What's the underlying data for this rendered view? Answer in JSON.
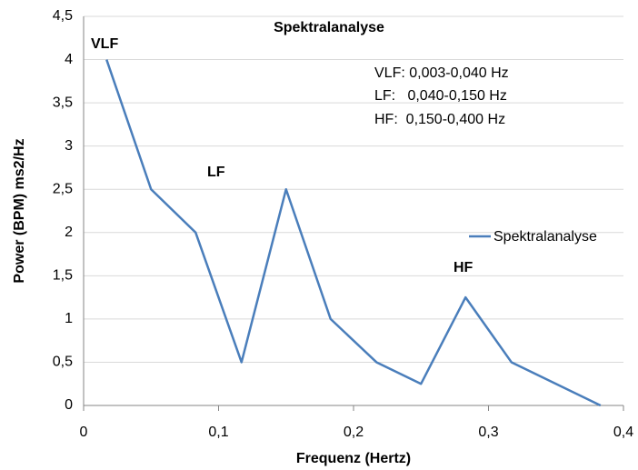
{
  "chart_data": {
    "type": "line",
    "title": "Spektralanalyse",
    "x_label": "Frequenz (Hertz)",
    "y_label": "Power (BPM) ms2/Hz",
    "x": [
      0.017,
      0.05,
      0.083,
      0.117,
      0.15,
      0.183,
      0.217,
      0.25,
      0.283,
      0.317,
      0.383
    ],
    "series": [
      {
        "name": "Spektralanalyse",
        "color": "#4a7ebb",
        "values": [
          4,
          2.5,
          2,
          0.5,
          2.5,
          1,
          0.5,
          0.25,
          1.25,
          0.5,
          0
        ]
      }
    ],
    "xlim": [
      0,
      0.4
    ],
    "xticks": [
      0,
      {
        "value": 0.1,
        "label": "0,1"
      },
      {
        "value": 0.2,
        "label": "0,2"
      },
      {
        "value": 0.3,
        "label": "0,3"
      },
      {
        "value": 0.4,
        "label": "0,4"
      }
    ],
    "ylim": [
      0,
      4.5
    ],
    "yticks": [
      0,
      {
        "value": 0.5,
        "label": "0,5"
      },
      1,
      {
        "value": 1.5,
        "label": "1,5"
      },
      2,
      {
        "value": 2.5,
        "label": "2,5"
      },
      3,
      {
        "value": 3.5,
        "label": "3,5"
      },
      4,
      {
        "value": 4.5,
        "label": "4,5"
      }
    ],
    "grid": true,
    "legend": "right",
    "annotations": [
      "VLF",
      "LF",
      "HF",
      "VLF: 0,003-0,040 Hz",
      "LF:   0,040-0,150 Hz",
      "HF:  0,150-0,400 Hz"
    ]
  }
}
